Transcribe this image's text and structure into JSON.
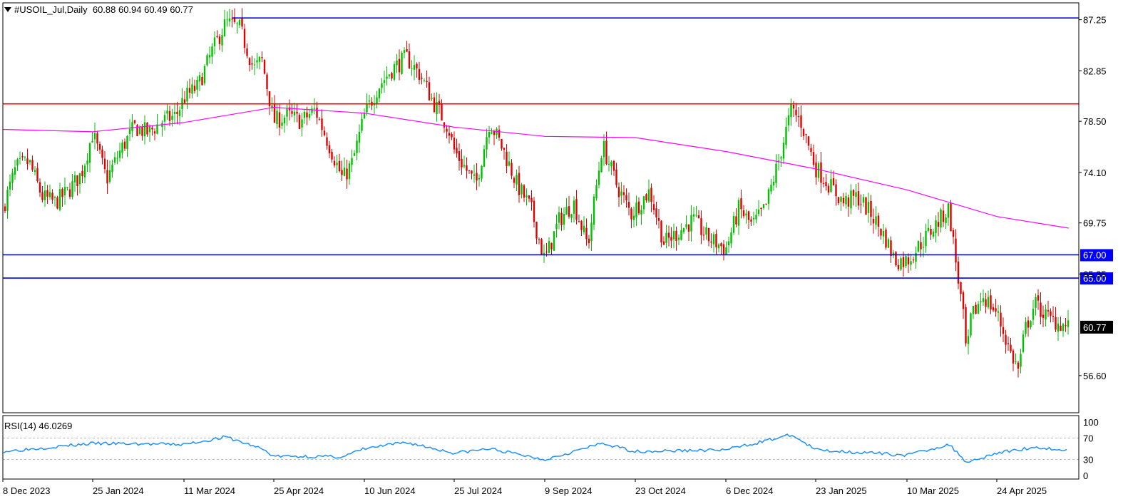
{
  "header": {
    "symbol_label": "#USOIL_Jul,Daily",
    "ohlc_label": "60.88 60.94 60.49 60.77"
  },
  "rsi": {
    "label": "RSI(14) 46.0269",
    "axis_labels": [
      "100",
      "70",
      "30",
      "0"
    ],
    "levels": [
      70,
      30
    ]
  },
  "colors": {
    "bull": "#00c000",
    "bear": "#e00000",
    "ma": "#ff00ff",
    "support": "#0000ff",
    "resistance": "#ff0000",
    "rsi": "#1e90ff",
    "price_tag": "#000000",
    "level_tag": "#0000ff"
  },
  "chart_data": {
    "type": "line",
    "title": "#USOIL_Jul,Daily",
    "price_axis_ticks": [
      "87.25",
      "82.85",
      "78.50",
      "74.10",
      "69.75",
      "65.35",
      "56.60"
    ],
    "ylim": [
      53.4,
      88.7
    ],
    "x_tick_labels": [
      "8 Dec 2023",
      "25 Jan 2024",
      "11 Mar 2024",
      "25 Apr 2024",
      "10 Jun 2024",
      "25 Jul 2024",
      "9 Sep 2024",
      "23 Oct 2024",
      "6 Dec 2024",
      "23 Jan 2025",
      "10 Mar 2025",
      "24 Apr 2025"
    ],
    "current_price": "60.77",
    "horizontal_levels": [
      {
        "value": 87.4,
        "color": "#0000ff",
        "label": ""
      },
      {
        "value": 80.0,
        "color": "#ff0000",
        "label": ""
      },
      {
        "value": 67.0,
        "color": "#0000ff",
        "label": "67.00"
      },
      {
        "value": 65.0,
        "color": "#0000ff",
        "label": "65.00"
      }
    ],
    "price_path": [
      [
        "8 Dec 2023",
        71.0
      ],
      [
        "15 Dec 2023",
        74.5
      ],
      [
        "22 Dec 2023",
        75.0
      ],
      [
        "29 Dec 2023",
        72.0
      ],
      [
        "5 Jan 2024",
        71.5
      ],
      [
        "12 Jan 2024",
        72.5
      ],
      [
        "19 Jan 2024",
        74.0
      ],
      [
        "25 Jan 2024",
        77.5
      ],
      [
        "1 Feb 2024",
        73.5
      ],
      [
        "8 Feb 2024",
        76.0
      ],
      [
        "15 Feb 2024",
        78.0
      ],
      [
        "22 Feb 2024",
        77.5
      ],
      [
        "29 Feb 2024",
        78.5
      ],
      [
        "7 Mar 2024",
        79.0
      ],
      [
        "11 Mar 2024",
        80.5
      ],
      [
        "18 Mar 2024",
        81.5
      ],
      [
        "25 Mar 2024",
        84.5
      ],
      [
        "1 Apr 2024",
        87.0
      ],
      [
        "8 Apr 2024",
        86.5
      ],
      [
        "15 Apr 2024",
        83.0
      ],
      [
        "19 Apr 2024",
        83.8
      ],
      [
        "25 Apr 2024",
        78.5
      ],
      [
        "2 May 2024",
        79.0
      ],
      [
        "9 May 2024",
        78.5
      ],
      [
        "16 May 2024",
        79.5
      ],
      [
        "23 May 2024",
        76.5
      ],
      [
        "30 May 2024",
        73.5
      ],
      [
        "4 Jun 2024",
        75.0
      ],
      [
        "10 Jun 2024",
        79.0
      ],
      [
        "17 Jun 2024",
        81.5
      ],
      [
        "24 Jun 2024",
        83.0
      ],
      [
        "1 Jul 2024",
        84.0
      ],
      [
        "8 Jul 2024",
        82.5
      ],
      [
        "15 Jul 2024",
        80.0
      ],
      [
        "22 Jul 2024",
        78.0
      ],
      [
        "25 Jul 2024",
        76.0
      ],
      [
        "5 Aug 2024",
        73.0
      ],
      [
        "12 Aug 2024",
        78.5
      ],
      [
        "19 Aug 2024",
        76.0
      ],
      [
        "26 Aug 2024",
        73.0
      ],
      [
        "2 Sep 2024",
        71.0
      ],
      [
        "9 Sep 2024",
        66.5
      ],
      [
        "16 Sep 2024",
        70.0
      ],
      [
        "23 Sep 2024",
        71.5
      ],
      [
        "30 Sep 2024",
        67.8
      ],
      [
        "7 Oct 2024",
        76.5
      ],
      [
        "14 Oct 2024",
        73.0
      ],
      [
        "21 Oct 2024",
        70.5
      ],
      [
        "23 Oct 2024",
        71.0
      ],
      [
        "30 Oct 2024",
        72.5
      ],
      [
        "6 Nov 2024",
        68.0
      ],
      [
        "13 Nov 2024",
        69.0
      ],
      [
        "20 Nov 2024",
        70.0
      ],
      [
        "27 Nov 2024",
        68.5
      ],
      [
        "6 Dec 2024",
        67.5
      ],
      [
        "13 Dec 2024",
        71.0
      ],
      [
        "20 Dec 2024",
        69.5
      ],
      [
        "27 Dec 2024",
        71.0
      ],
      [
        "3 Jan 2025",
        75.0
      ],
      [
        "10 Jan 2025",
        79.5
      ],
      [
        "15 Jan 2025",
        78.5
      ],
      [
        "23 Jan 2025",
        74.5
      ],
      [
        "30 Jan 2025",
        73.0
      ],
      [
        "6 Feb 2025",
        71.5
      ],
      [
        "13 Feb 2025",
        72.0
      ],
      [
        "20 Feb 2025",
        70.5
      ],
      [
        "27 Feb 2025",
        68.5
      ],
      [
        "4 Mar 2025",
        66.5
      ],
      [
        "10 Mar 2025",
        66.5
      ],
      [
        "17 Mar 2025",
        68.0
      ],
      [
        "24 Mar 2025",
        69.5
      ],
      [
        "31 Mar 2025",
        71.0
      ],
      [
        "3 Apr 2025",
        67.0
      ],
      [
        "7 Apr 2025",
        62.0
      ],
      [
        "9 Apr 2025",
        58.0
      ],
      [
        "11 Apr 2025",
        61.5
      ],
      [
        "17 Apr 2025",
        63.5
      ],
      [
        "24 Apr 2025",
        62.0
      ],
      [
        "1 May 2025",
        58.5
      ],
      [
        "5 May 2025",
        57.0
      ],
      [
        "8 May 2025",
        60.5
      ],
      [
        "13 May 2025",
        62.8
      ],
      [
        "20 May 2025",
        61.5
      ],
      [
        "27 May 2025",
        61.0
      ],
      [
        "30 May 2025",
        60.77
      ]
    ],
    "ma_path": [
      [
        "8 Dec 2023",
        77.8
      ],
      [
        "25 Jan 2024",
        77.6
      ],
      [
        "11 Mar 2024",
        78.4
      ],
      [
        "25 Apr 2024",
        79.7
      ],
      [
        "10 Jun 2024",
        79.2
      ],
      [
        "25 Jul 2024",
        78.0
      ],
      [
        "9 Sep 2024",
        77.2
      ],
      [
        "23 Oct 2024",
        77.1
      ],
      [
        "6 Dec 2024",
        75.9
      ],
      [
        "23 Jan 2025",
        74.4
      ],
      [
        "10 Mar 2025",
        72.6
      ],
      [
        "24 Apr 2025",
        70.3
      ],
      [
        "30 May 2025",
        69.3
      ]
    ],
    "rsi_path": [
      [
        "8 Dec 2023",
        45
      ],
      [
        "25 Jan 2024",
        60
      ],
      [
        "11 Mar 2024",
        58
      ],
      [
        "1 Apr 2024",
        72
      ],
      [
        "19 Apr 2024",
        50
      ],
      [
        "25 Apr 2024",
        36
      ],
      [
        "30 May 2024",
        35
      ],
      [
        "10 Jun 2024",
        50
      ],
      [
        "1 Jul 2024",
        62
      ],
      [
        "25 Jul 2024",
        42
      ],
      [
        "12 Aug 2024",
        50
      ],
      [
        "9 Sep 2024",
        30
      ],
      [
        "7 Oct 2024",
        60
      ],
      [
        "23 Oct 2024",
        45
      ],
      [
        "6 Dec 2024",
        48
      ],
      [
        "10 Jan 2025",
        76
      ],
      [
        "23 Jan 2025",
        48
      ],
      [
        "10 Mar 2025",
        38
      ],
      [
        "31 Mar 2025",
        58
      ],
      [
        "9 Apr 2025",
        25
      ],
      [
        "24 Apr 2025",
        42
      ],
      [
        "13 May 2025",
        53
      ],
      [
        "30 May 2025",
        46.0269
      ]
    ]
  }
}
